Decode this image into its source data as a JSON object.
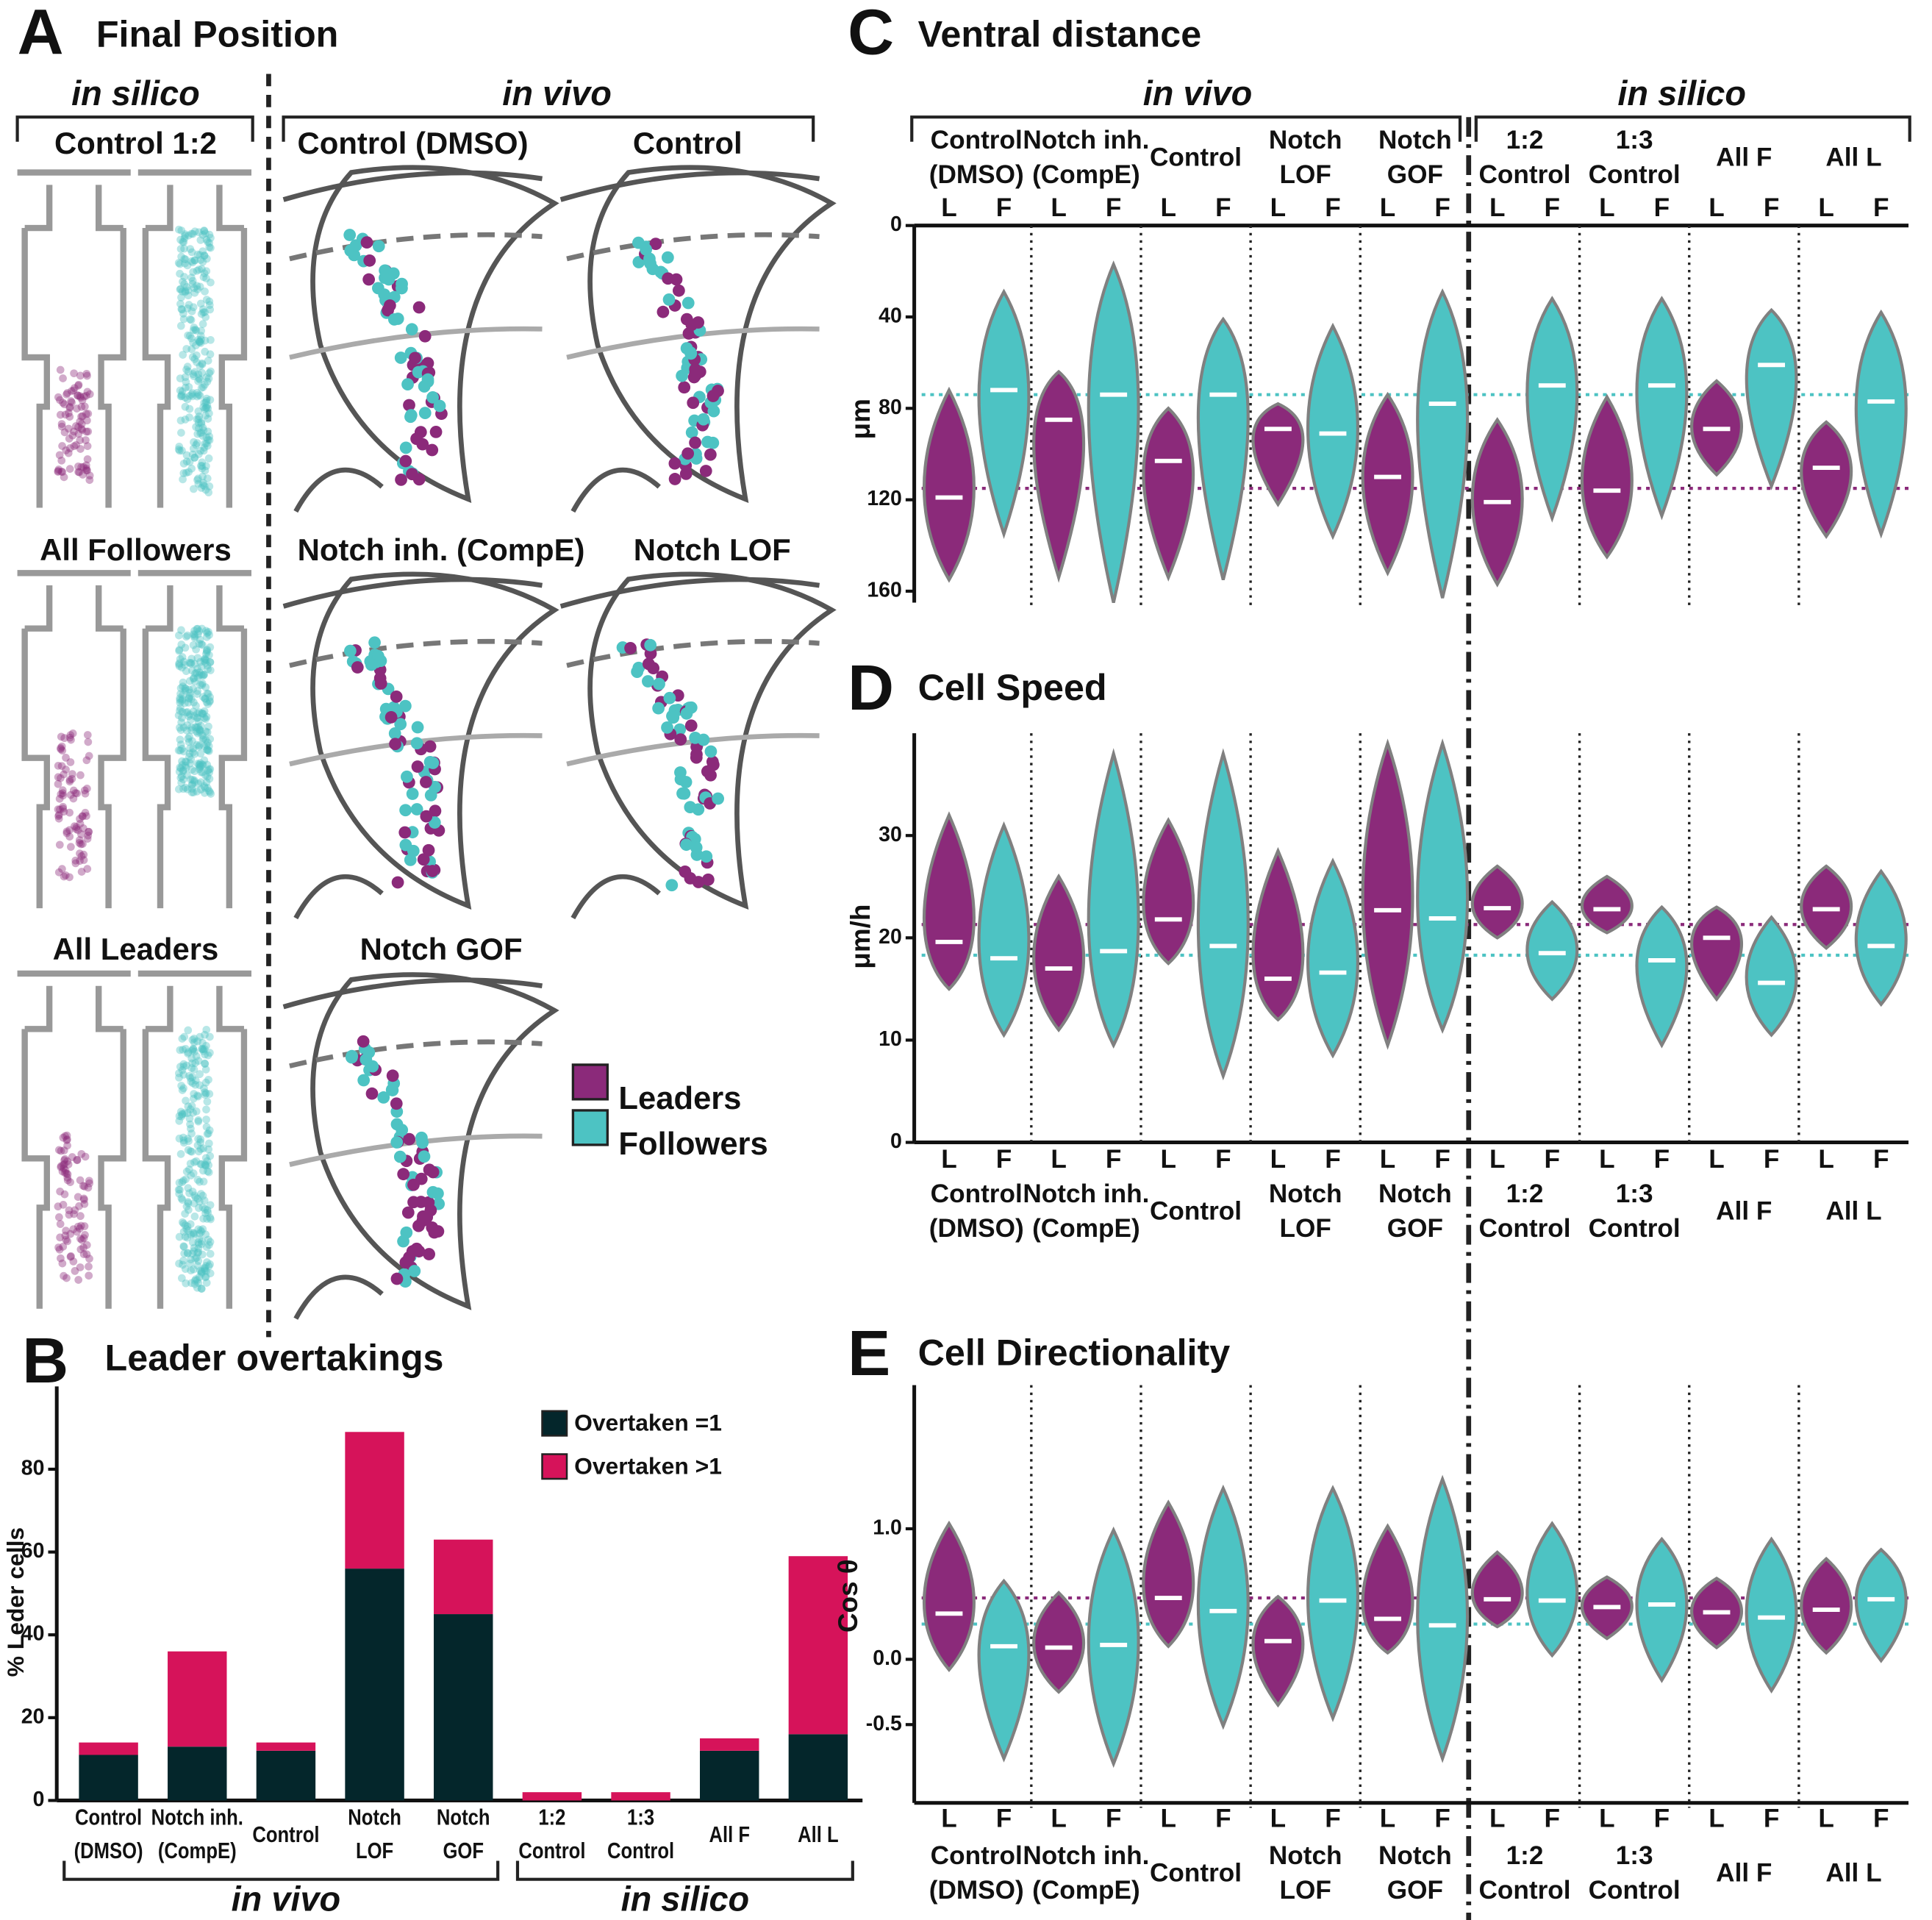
{
  "panel_a": {
    "letter": "A",
    "title": "Final Position",
    "in_silico": "in silico",
    "in_vivo": "in vivo",
    "silico_labels": [
      "Control 1:2",
      "All Followers",
      "All Leaders"
    ],
    "vivo_labels": [
      "Control (DMSO)",
      "Control",
      "Notch inh. (CompE)",
      "Notch LOF",
      "Notch GOF"
    ]
  },
  "chart_data": [
    {
      "type": "bar",
      "letter": "B",
      "title": "Leader overtakings",
      "ylabel": "% Leder cells",
      "stacked": true,
      "categories": [
        [
          "Control",
          "(DMSO)"
        ],
        [
          "Notch inh.",
          "(CompE)"
        ],
        [
          "Control"
        ],
        [
          "Notch",
          "LOF"
        ],
        [
          "Notch",
          "GOF"
        ],
        [
          "1:2",
          "Control"
        ],
        [
          "1:3",
          "Control"
        ],
        [
          "All F"
        ],
        [
          "All L"
        ]
      ],
      "group_headers": [
        "in vivo",
        "in silico"
      ],
      "series": [
        {
          "name": "Overtaken =1",
          "color": "#04262b",
          "values": [
            11,
            13,
            12,
            56,
            45,
            0,
            0,
            12,
            16
          ]
        },
        {
          "name": "Overtaken >1",
          "color": "#d6135a",
          "values": [
            3,
            23,
            2,
            33,
            18,
            2,
            2,
            3,
            43
          ]
        }
      ],
      "ylim": [
        0,
        100
      ],
      "yticks": [
        0,
        20,
        40,
        60,
        80
      ],
      "legend": "upper right"
    },
    {
      "type": "violin",
      "letter": "C",
      "title": "Ventral distance",
      "ylabel": "μm",
      "invert_y": true,
      "group_headers": [
        "in vivo",
        "in silico"
      ],
      "categories": [
        [
          "Control",
          "(DMSO)"
        ],
        [
          "Notch inh.",
          "(CompE)"
        ],
        [
          "Control"
        ],
        [
          "Notch",
          "LOF"
        ],
        [
          "Notch",
          "GOF"
        ],
        [
          "1:2",
          "Control"
        ],
        [
          "1:3",
          "Control"
        ],
        [
          "All F"
        ],
        [
          "All L"
        ]
      ],
      "series": [
        {
          "name": "Leaders",
          "label": "L",
          "color": "#8b2a7a",
          "median": [
            119,
            85,
            103,
            89,
            110,
            121,
            116,
            89,
            106
          ],
          "min": [
            72,
            64,
            80,
            78,
            74,
            85,
            75,
            68,
            86
          ],
          "max": [
            155,
            154,
            154,
            122,
            152,
            157,
            145,
            109,
            136
          ],
          "reference": 115
        },
        {
          "name": "Followers",
          "label": "F",
          "color": "#4dc3c3",
          "median": [
            72,
            74,
            74,
            91,
            78,
            70,
            70,
            61,
            77
          ],
          "min": [
            29,
            17,
            41,
            44,
            29,
            32,
            32,
            37,
            38
          ],
          "max": [
            135,
            165,
            155,
            136,
            163,
            128,
            127,
            114,
            135
          ],
          "reference": 74
        }
      ],
      "ylim": [
        0,
        165
      ],
      "yticks": [
        0,
        40,
        80,
        120,
        160
      ]
    },
    {
      "type": "violin",
      "letter": "D",
      "title": "Cell Speed",
      "ylabel": "μm/h",
      "categories": [
        [
          "Control",
          "(DMSO)"
        ],
        [
          "Notch inh.",
          "(CompE)"
        ],
        [
          "Control"
        ],
        [
          "Notch",
          "LOF"
        ],
        [
          "Notch",
          "GOF"
        ],
        [
          "1:2",
          "Control"
        ],
        [
          "1:3",
          "Control"
        ],
        [
          "All F"
        ],
        [
          "All L"
        ]
      ],
      "series": [
        {
          "name": "Leaders",
          "label": "L",
          "color": "#8b2a7a",
          "median": [
            19.6,
            17,
            21.8,
            16,
            22.7,
            22.9,
            22.8,
            20,
            22.8
          ],
          "min": [
            15,
            11,
            17.5,
            12,
            9.5,
            20,
            20.5,
            14,
            19
          ],
          "max": [
            32,
            26,
            31.5,
            28.5,
            39,
            27,
            26,
            23,
            27
          ],
          "reference": 21.3
        },
        {
          "name": "Followers",
          "label": "F",
          "color": "#4dc3c3",
          "median": [
            18,
            18.7,
            19.2,
            16.6,
            21.9,
            18.5,
            17.8,
            15.6,
            19.2
          ],
          "min": [
            10.5,
            9.5,
            6.5,
            8.5,
            11,
            14,
            9.5,
            10.5,
            13.5
          ],
          "max": [
            31,
            38,
            38,
            27.5,
            39,
            23.5,
            23,
            22,
            26.5
          ],
          "reference": 18.3
        }
      ],
      "ylim": [
        0,
        40
      ],
      "yticks": [
        0,
        10,
        20,
        30
      ]
    },
    {
      "type": "violin",
      "letter": "E",
      "title": "Cell Directionality",
      "ylabel": "Cos θ",
      "categories": [
        [
          "Control",
          "(DMSO)"
        ],
        [
          "Notch inh.",
          "(CompE)"
        ],
        [
          "Control"
        ],
        [
          "Notch",
          "LOF"
        ],
        [
          "Notch",
          "GOF"
        ],
        [
          "1:2",
          "Control"
        ],
        [
          "1:3",
          "Control"
        ],
        [
          "All F"
        ],
        [
          "All L"
        ]
      ],
      "series": [
        {
          "name": "Leaders",
          "label": "L",
          "color": "#8b2a7a",
          "median": [
            0.35,
            0.09,
            0.47,
            0.14,
            0.31,
            0.46,
            0.4,
            0.36,
            0.38
          ],
          "min": [
            -0.08,
            -0.25,
            0.1,
            -0.35,
            0.05,
            0.25,
            0.16,
            0.09,
            0.05
          ],
          "max": [
            1.04,
            0.51,
            1.2,
            0.48,
            1.02,
            0.82,
            0.63,
            0.62,
            0.77
          ],
          "reference": 0.47
        },
        {
          "name": "Followers",
          "label": "F",
          "color": "#4dc3c3",
          "median": [
            0.1,
            0.11,
            0.37,
            0.45,
            0.26,
            0.45,
            0.42,
            0.32,
            0.46
          ],
          "min": [
            -0.76,
            -0.8,
            -0.51,
            -0.45,
            -0.76,
            0.03,
            -0.16,
            -0.24,
            -0.01
          ],
          "max": [
            0.6,
            0.99,
            1.31,
            1.31,
            1.38,
            1.04,
            0.92,
            0.92,
            0.84
          ],
          "reference": 0.27
        }
      ],
      "ylim": [
        -1.1,
        2.1
      ],
      "yticks": [
        -0.5,
        {
          "value": 0,
          "label": "0.0"
        },
        {
          "value": 1,
          "label": "1.0"
        }
      ]
    }
  ]
}
